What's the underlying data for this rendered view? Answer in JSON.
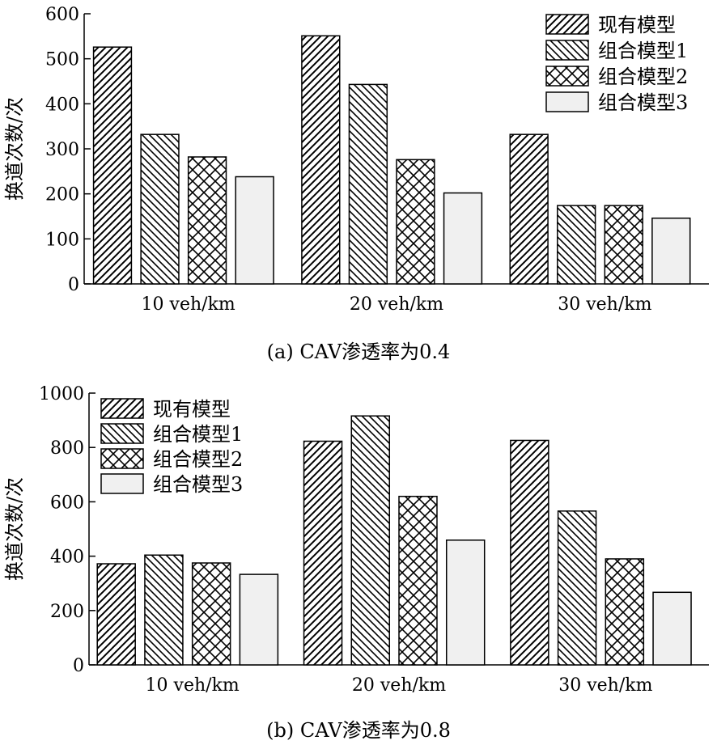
{
  "legend_labels": [
    "现有模型",
    "组合模型1",
    "组合模型2",
    "组合模型3"
  ],
  "chart_data": [
    {
      "type": "bar",
      "title": "(a) CAV渗透率为0.4",
      "xlabel": "",
      "ylabel": "换道次数/次",
      "categories": [
        "10 veh/km",
        "20 veh/km",
        "30 veh/km"
      ],
      "ylim": [
        0,
        600
      ],
      "yticks": [
        0,
        100,
        200,
        300,
        400,
        500,
        600
      ],
      "legend_position": "top-right",
      "grid": false,
      "series": [
        {
          "name": "现有模型",
          "pattern": "diagonal-hatch",
          "values": [
            526,
            551,
            332
          ]
        },
        {
          "name": "组合模型1",
          "pattern": "back-diagonal-hatch",
          "values": [
            332,
            443,
            174
          ]
        },
        {
          "name": "组合模型2",
          "pattern": "cross-hatch",
          "values": [
            282,
            276,
            174
          ]
        },
        {
          "name": "组合模型3",
          "pattern": "solid-light-gray",
          "values": [
            238,
            202,
            146
          ]
        }
      ]
    },
    {
      "type": "bar",
      "title": "(b) CAV渗透率为0.8",
      "xlabel": "",
      "ylabel": "换道次数/次",
      "categories": [
        "10 veh/km",
        "20 veh/km",
        "30 veh/km"
      ],
      "ylim": [
        0,
        1000
      ],
      "yticks": [
        0,
        200,
        400,
        600,
        800,
        1000
      ],
      "legend_position": "top-left",
      "grid": false,
      "series": [
        {
          "name": "现有模型",
          "pattern": "diagonal-hatch",
          "values": [
            372,
            823,
            826
          ]
        },
        {
          "name": "组合模型1",
          "pattern": "back-diagonal-hatch",
          "values": [
            404,
            916,
            566
          ]
        },
        {
          "name": "组合模型2",
          "pattern": "cross-hatch",
          "values": [
            375,
            620,
            390
          ]
        },
        {
          "name": "组合模型3",
          "pattern": "solid-light-gray",
          "values": [
            333,
            459,
            267
          ]
        }
      ]
    }
  ]
}
